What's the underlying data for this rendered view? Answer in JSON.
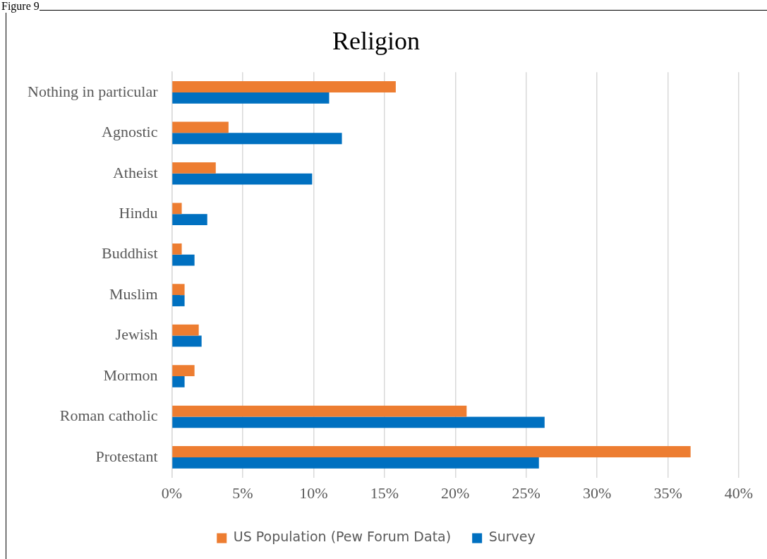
{
  "chart_data": {
    "type": "bar",
    "orientation": "horizontal",
    "title": "Religion",
    "categories": [
      "Nothing in particular",
      "Agnostic",
      "Atheist",
      "Hindu",
      "Buddhist",
      "Muslim",
      "Jewish",
      "Mormon",
      "Roman catholic",
      "Protestant"
    ],
    "series": [
      {
        "name": "US Population (Pew Forum Data)",
        "color": "#ed7d31",
        "values": [
          15.8,
          4.0,
          3.1,
          0.7,
          0.7,
          0.9,
          1.9,
          1.6,
          20.8,
          36.6
        ]
      },
      {
        "name": "Survey",
        "color": "#0070c0",
        "values": [
          11.1,
          12.0,
          9.9,
          2.5,
          1.6,
          0.9,
          2.1,
          0.9,
          26.3,
          25.9
        ]
      }
    ],
    "xlim": [
      0,
      40
    ],
    "xticks": [
      {
        "value": 0,
        "label": "0%"
      },
      {
        "value": 5,
        "label": "5%"
      },
      {
        "value": 10,
        "label": "10%"
      },
      {
        "value": 15,
        "label": "15%"
      },
      {
        "value": 20,
        "label": "20%"
      },
      {
        "value": 25,
        "label": "25%"
      },
      {
        "value": 30,
        "label": "30%"
      },
      {
        "value": 35,
        "label": "35%"
      },
      {
        "value": 40,
        "label": "40%"
      }
    ],
    "grid": "x",
    "legend": "bottom",
    "annotations": [
      "Figure 9"
    ]
  }
}
